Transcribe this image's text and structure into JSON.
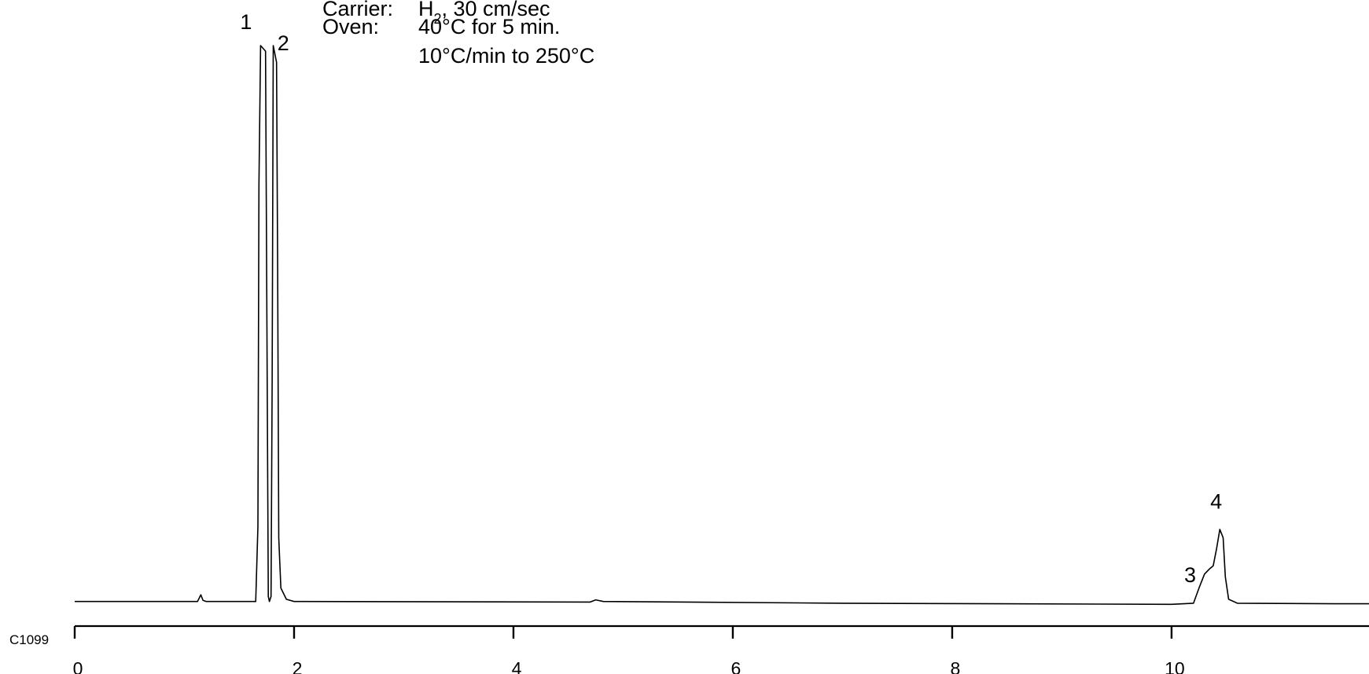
{
  "conditions": [
    {
      "label": "Carrier:",
      "value": "H",
      "value_sub": "2",
      "value_suffix": ", 30 cm/sec"
    },
    {
      "label": "Oven:",
      "value": "40°C for 5 min.",
      "value_sub": "",
      "value_suffix": ""
    },
    {
      "label": "",
      "value": "10°C/min to 250°C",
      "value_sub": "",
      "value_suffix": ""
    }
  ],
  "figure_code": "C1099",
  "chart_data": {
    "type": "line",
    "title": "",
    "xlabel": "",
    "ylabel": "",
    "xlim": [
      0,
      11.8
    ],
    "ylim": [
      0,
      100
    ],
    "grid": false,
    "x_ticks": [
      0,
      2,
      4,
      6,
      8,
      10
    ],
    "x_tick_labels": [
      "0",
      "2",
      "4",
      "6",
      "8",
      "10"
    ],
    "series": [
      {
        "points": [
          [
            0.0,
            0.6
          ],
          [
            1.12,
            0.6
          ],
          [
            1.15,
            1.8
          ],
          [
            1.17,
            0.8
          ],
          [
            1.2,
            0.6
          ],
          [
            1.65,
            0.6
          ],
          [
            1.67,
            14
          ],
          [
            1.68,
            75
          ],
          [
            1.695,
            100
          ],
          [
            1.74,
            99
          ],
          [
            1.755,
            40
          ],
          [
            1.765,
            1.5
          ],
          [
            1.775,
            0.6
          ],
          [
            1.79,
            1.5
          ],
          [
            1.8,
            40
          ],
          [
            1.81,
            100
          ],
          [
            1.84,
            97
          ],
          [
            1.85,
            60
          ],
          [
            1.86,
            12
          ],
          [
            1.88,
            3
          ],
          [
            1.93,
            1.0
          ],
          [
            2.0,
            0.6
          ],
          [
            4.7,
            0.5
          ],
          [
            4.75,
            0.9
          ],
          [
            4.82,
            0.6
          ],
          [
            7.0,
            0.3
          ],
          [
            10.0,
            0.1
          ],
          [
            10.2,
            0.3
          ],
          [
            10.25,
            3
          ],
          [
            10.3,
            5.5
          ],
          [
            10.35,
            6.5
          ],
          [
            10.38,
            7.0
          ],
          [
            10.41,
            10.0
          ],
          [
            10.44,
            13.5
          ],
          [
            10.47,
            12
          ],
          [
            10.49,
            5
          ],
          [
            10.52,
            1.0
          ],
          [
            10.6,
            0.3
          ],
          [
            11.5,
            0.2
          ],
          [
            11.8,
            0.2
          ]
        ]
      }
    ],
    "peaks": [
      {
        "label": "1",
        "rt": 1.72
      },
      {
        "label": "2",
        "rt": 1.83
      },
      {
        "label": "3",
        "rt": 10.37
      },
      {
        "label": "4",
        "rt": 10.45
      }
    ]
  }
}
